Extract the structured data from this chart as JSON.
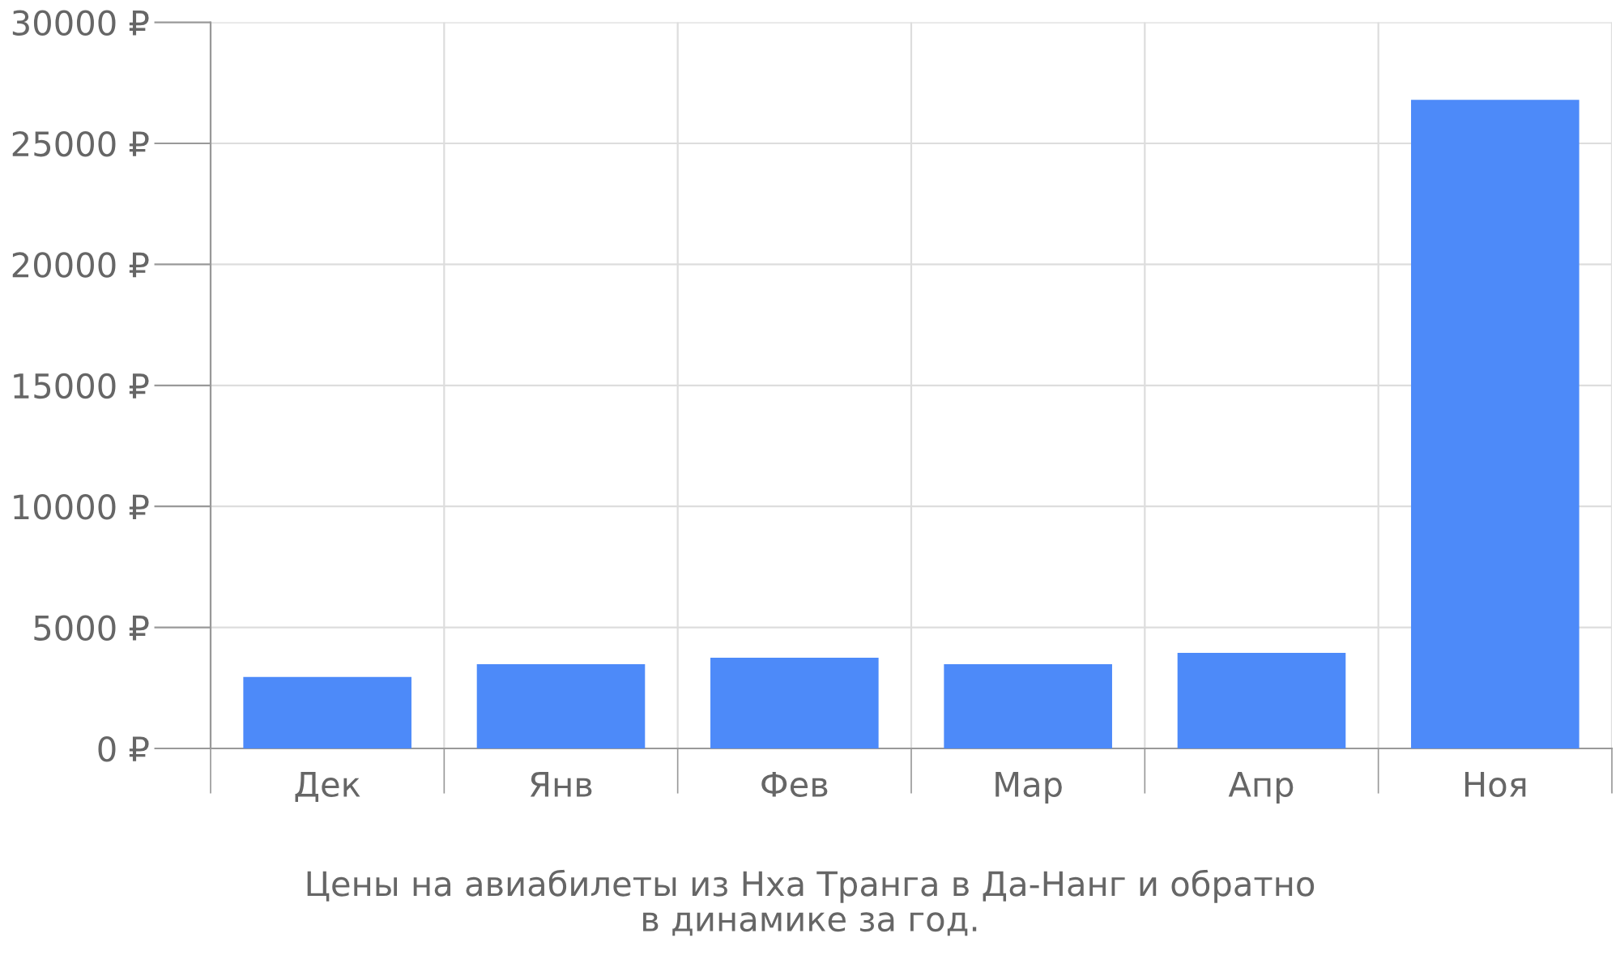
{
  "chart_data": {
    "type": "bar",
    "categories": [
      "Дек",
      "Янв",
      "Фев",
      "Мар",
      "Апр",
      "Ноя"
    ],
    "values": [
      2950,
      3480,
      3750,
      3480,
      3950,
      26800
    ],
    "color": "#4d8af9",
    "ylim": [
      0,
      30000
    ],
    "yticks": [
      {
        "value": 0,
        "label": "0 ₽"
      },
      {
        "value": 5000,
        "label": "5000 ₽"
      },
      {
        "value": 10000,
        "label": "10000 ₽"
      },
      {
        "value": 15000,
        "label": "15000 ₽"
      },
      {
        "value": 20000,
        "label": "20000 ₽"
      },
      {
        "value": 25000,
        "label": "25000 ₽"
      },
      {
        "value": 30000,
        "label": "30000 ₽"
      }
    ],
    "grid": true,
    "annotations": [
      "Цены на авиабилеты из Нха Транга в Да-Нанг и обратно\nв динамике за год."
    ]
  }
}
